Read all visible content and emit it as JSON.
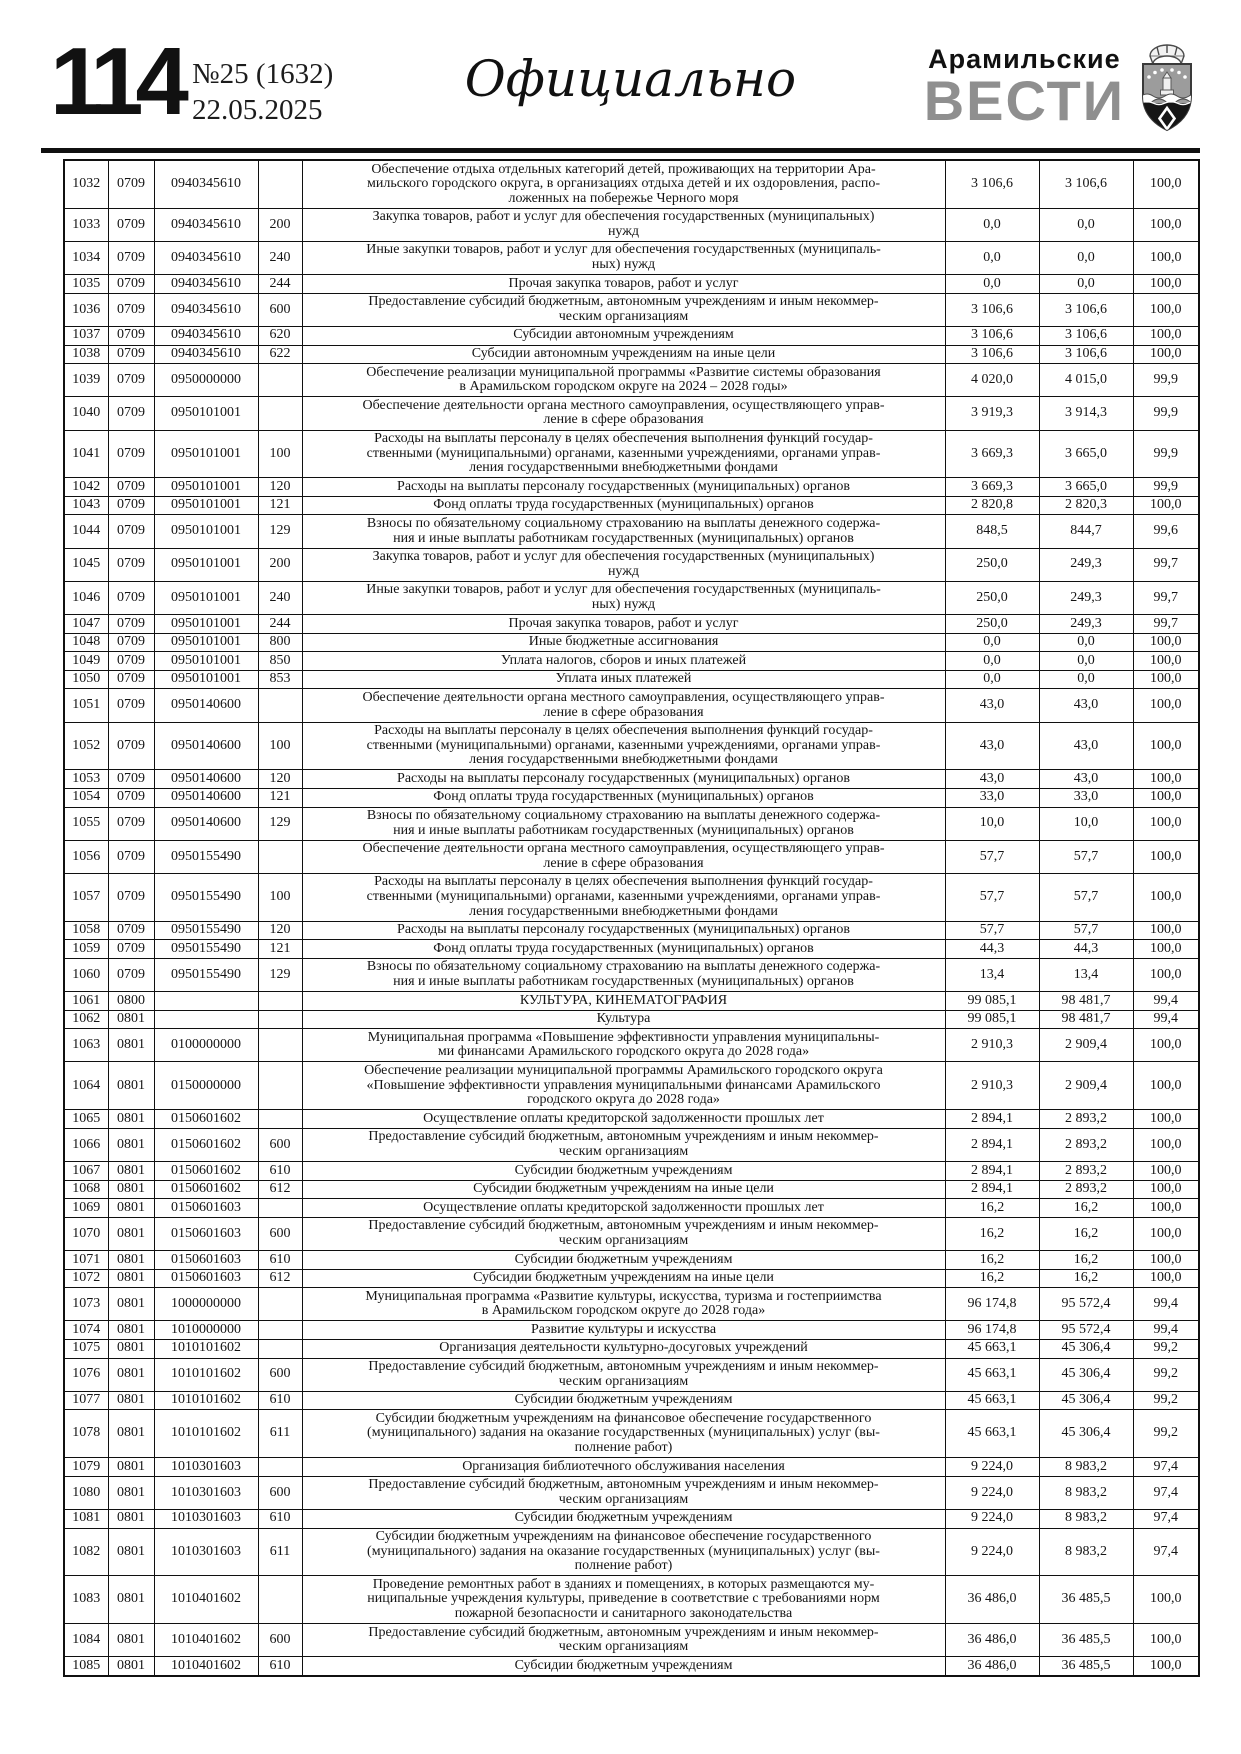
{
  "page_header": {
    "page_number": "114",
    "issue_number": "№25 (1632)",
    "issue_date": "22.05.2025",
    "section_title": "Официально",
    "brand_line1": "Арамильские",
    "brand_line2": "ВЕСТИ",
    "emblem": "aramil-coat-of-arms"
  },
  "colors": {
    "ink": "#1c1c1c",
    "brand_gray": "#8f8f8f",
    "rule_black": "#101010"
  },
  "table": {
    "rows": [
      {
        "num": "1032",
        "section": "0709",
        "target": "0940345610",
        "type": "",
        "name": "Обеспечение отдыха отдельных категорий детей, проживающих на территории Ара-\nмильского городского округа, в организациях отдыха детей и их оздоровления, распо-\nложенных на побережье Черного моря",
        "plan": "3 106,6",
        "fact": "3 106,6",
        "pct": "100,0"
      },
      {
        "num": "1033",
        "section": "0709",
        "target": "0940345610",
        "type": "200",
        "name": "Закупка товаров, работ и услуг для обеспечения государственных (муниципальных)\nнужд",
        "plan": "0,0",
        "fact": "0,0",
        "pct": "100,0"
      },
      {
        "num": "1034",
        "section": "0709",
        "target": "0940345610",
        "type": "240",
        "name": "Иные закупки товаров, работ и услуг для обеспечения государственных (муниципаль-\nных) нужд",
        "plan": "0,0",
        "fact": "0,0",
        "pct": "100,0"
      },
      {
        "num": "1035",
        "section": "0709",
        "target": "0940345610",
        "type": "244",
        "name": "Прочая закупка товаров, работ и услуг",
        "plan": "0,0",
        "fact": "0,0",
        "pct": "100,0"
      },
      {
        "num": "1036",
        "section": "0709",
        "target": "0940345610",
        "type": "600",
        "name": "Предоставление субсидий бюджетным, автономным учреждениям и иным некоммер-\nческим организациям",
        "plan": "3 106,6",
        "fact": "3 106,6",
        "pct": "100,0"
      },
      {
        "num": "1037",
        "section": "0709",
        "target": "0940345610",
        "type": "620",
        "name": "Субсидии автономным учреждениям",
        "plan": "3 106,6",
        "fact": "3 106,6",
        "pct": "100,0"
      },
      {
        "num": "1038",
        "section": "0709",
        "target": "0940345610",
        "type": "622",
        "name": "Субсидии автономным учреждениям на иные цели",
        "plan": "3 106,6",
        "fact": "3 106,6",
        "pct": "100,0"
      },
      {
        "num": "1039",
        "section": "0709",
        "target": "0950000000",
        "type": "",
        "name": "Обеспечение реализации муниципальной программы «Развитие системы образования\nв Арамильском городском округе на 2024 – 2028 годы»",
        "plan": "4 020,0",
        "fact": "4 015,0",
        "pct": "99,9"
      },
      {
        "num": "1040",
        "section": "0709",
        "target": "0950101001",
        "type": "",
        "name": "Обеспечение деятельности органа местного самоуправления, осуществляющего управ-\nление в сфере образования",
        "plan": "3 919,3",
        "fact": "3 914,3",
        "pct": "99,9"
      },
      {
        "num": "1041",
        "section": "0709",
        "target": "0950101001",
        "type": "100",
        "name": "Расходы на выплаты персоналу в целях обеспечения выполнения функций государ-\nственными (муниципальными) органами, казенными учреждениями, органами управ-\nления государственными внебюджетными фондами",
        "plan": "3 669,3",
        "fact": "3 665,0",
        "pct": "99,9"
      },
      {
        "num": "1042",
        "section": "0709",
        "target": "0950101001",
        "type": "120",
        "name": "Расходы на выплаты персоналу государственных (муниципальных) органов",
        "plan": "3 669,3",
        "fact": "3 665,0",
        "pct": "99,9"
      },
      {
        "num": "1043",
        "section": "0709",
        "target": "0950101001",
        "type": "121",
        "name": "Фонд оплаты труда государственных (муниципальных) органов",
        "plan": "2 820,8",
        "fact": "2 820,3",
        "pct": "100,0"
      },
      {
        "num": "1044",
        "section": "0709",
        "target": "0950101001",
        "type": "129",
        "name": "Взносы по обязательному социальному страхованию на выплаты денежного содержа-\nния и иные выплаты работникам государственных (муниципальных) органов",
        "plan": "848,5",
        "fact": "844,7",
        "pct": "99,6"
      },
      {
        "num": "1045",
        "section": "0709",
        "target": "0950101001",
        "type": "200",
        "name": "Закупка товаров, работ и услуг для обеспечения государственных (муниципальных)\nнужд",
        "plan": "250,0",
        "fact": "249,3",
        "pct": "99,7"
      },
      {
        "num": "1046",
        "section": "0709",
        "target": "0950101001",
        "type": "240",
        "name": "Иные закупки товаров, работ и услуг для обеспечения государственных (муниципаль-\nных) нужд",
        "plan": "250,0",
        "fact": "249,3",
        "pct": "99,7"
      },
      {
        "num": "1047",
        "section": "0709",
        "target": "0950101001",
        "type": "244",
        "name": "Прочая закупка товаров, работ и услуг",
        "plan": "250,0",
        "fact": "249,3",
        "pct": "99,7"
      },
      {
        "num": "1048",
        "section": "0709",
        "target": "0950101001",
        "type": "800",
        "name": "Иные бюджетные ассигнования",
        "plan": "0,0",
        "fact": "0,0",
        "pct": "100,0"
      },
      {
        "num": "1049",
        "section": "0709",
        "target": "0950101001",
        "type": "850",
        "name": "Уплата налогов, сборов и иных платежей",
        "plan": "0,0",
        "fact": "0,0",
        "pct": "100,0"
      },
      {
        "num": "1050",
        "section": "0709",
        "target": "0950101001",
        "type": "853",
        "name": "Уплата иных платежей",
        "plan": "0,0",
        "fact": "0,0",
        "pct": "100,0"
      },
      {
        "num": "1051",
        "section": "0709",
        "target": "0950140600",
        "type": "",
        "name": "Обеспечение деятельности органа местного самоуправления, осуществляющего управ-\nление в сфере образования",
        "plan": "43,0",
        "fact": "43,0",
        "pct": "100,0"
      },
      {
        "num": "1052",
        "section": "0709",
        "target": "0950140600",
        "type": "100",
        "name": "Расходы на выплаты персоналу в целях обеспечения выполнения функций государ-\nственными (муниципальными) органами, казенными учреждениями, органами управ-\nления государственными внебюджетными фондами",
        "plan": "43,0",
        "fact": "43,0",
        "pct": "100,0"
      },
      {
        "num": "1053",
        "section": "0709",
        "target": "0950140600",
        "type": "120",
        "name": "Расходы на выплаты персоналу государственных (муниципальных) органов",
        "plan": "43,0",
        "fact": "43,0",
        "pct": "100,0"
      },
      {
        "num": "1054",
        "section": "0709",
        "target": "0950140600",
        "type": "121",
        "name": "Фонд оплаты труда государственных (муниципальных) органов",
        "plan": "33,0",
        "fact": "33,0",
        "pct": "100,0"
      },
      {
        "num": "1055",
        "section": "0709",
        "target": "0950140600",
        "type": "129",
        "name": "Взносы по обязательному социальному страхованию на выплаты денежного содержа-\nния и иные выплаты работникам государственных (муниципальных) органов",
        "plan": "10,0",
        "fact": "10,0",
        "pct": "100,0"
      },
      {
        "num": "1056",
        "section": "0709",
        "target": "0950155490",
        "type": "",
        "name": "Обеспечение деятельности органа местного самоуправления, осуществляющего управ-\nление в сфере образования",
        "plan": "57,7",
        "fact": "57,7",
        "pct": "100,0"
      },
      {
        "num": "1057",
        "section": "0709",
        "target": "0950155490",
        "type": "100",
        "name": "Расходы на выплаты персоналу в целях обеспечения выполнения функций государ-\nственными (муниципальными) органами, казенными учреждениями, органами управ-\nления государственными внебюджетными фондами",
        "plan": "57,7",
        "fact": "57,7",
        "pct": "100,0"
      },
      {
        "num": "1058",
        "section": "0709",
        "target": "0950155490",
        "type": "120",
        "name": "Расходы на выплаты персоналу государственных (муниципальных) органов",
        "plan": "57,7",
        "fact": "57,7",
        "pct": "100,0"
      },
      {
        "num": "1059",
        "section": "0709",
        "target": "0950155490",
        "type": "121",
        "name": "Фонд оплаты труда государственных (муниципальных) органов",
        "plan": "44,3",
        "fact": "44,3",
        "pct": "100,0"
      },
      {
        "num": "1060",
        "section": "0709",
        "target": "0950155490",
        "type": "129",
        "name": "Взносы по обязательному социальному страхованию на выплаты денежного содержа-\nния и иные выплаты работникам государственных (муниципальных) органов",
        "plan": "13,4",
        "fact": "13,4",
        "pct": "100,0"
      },
      {
        "num": "1061",
        "section": "0800",
        "target": "",
        "type": "",
        "name": "КУЛЬТУРА, КИНЕМАТОГРАФИЯ",
        "plan": "99 085,1",
        "fact": "98 481,7",
        "pct": "99,4"
      },
      {
        "num": "1062",
        "section": "0801",
        "target": "",
        "type": "",
        "name": "Культура",
        "plan": "99 085,1",
        "fact": "98 481,7",
        "pct": "99,4"
      },
      {
        "num": "1063",
        "section": "0801",
        "target": "0100000000",
        "type": "",
        "name": "Муниципальная программа «Повышение эффективности управления муниципальны-\nми финансами Арамильского городского округа до 2028 года»",
        "plan": "2 910,3",
        "fact": "2 909,4",
        "pct": "100,0"
      },
      {
        "num": "1064",
        "section": "0801",
        "target": "0150000000",
        "type": "",
        "name": "Обеспечение реализации муниципальной программы Арамильского городского округа\n«Повышение эффективности управления муниципальными финансами Арамильского\nгородского округа до 2028 года»",
        "plan": "2 910,3",
        "fact": "2 909,4",
        "pct": "100,0"
      },
      {
        "num": "1065",
        "section": "0801",
        "target": "0150601602",
        "type": "",
        "name": "Осуществление оплаты кредиторской задолженности прошлых лет",
        "plan": "2 894,1",
        "fact": "2 893,2",
        "pct": "100,0"
      },
      {
        "num": "1066",
        "section": "0801",
        "target": "0150601602",
        "type": "600",
        "name": "Предоставление субсидий бюджетным, автономным учреждениям и иным некоммер-\nческим организациям",
        "plan": "2 894,1",
        "fact": "2 893,2",
        "pct": "100,0"
      },
      {
        "num": "1067",
        "section": "0801",
        "target": "0150601602",
        "type": "610",
        "name": "Субсидии бюджетным учреждениям",
        "plan": "2 894,1",
        "fact": "2 893,2",
        "pct": "100,0"
      },
      {
        "num": "1068",
        "section": "0801",
        "target": "0150601602",
        "type": "612",
        "name": "Субсидии бюджетным учреждениям на иные цели",
        "plan": "2 894,1",
        "fact": "2 893,2",
        "pct": "100,0"
      },
      {
        "num": "1069",
        "section": "0801",
        "target": "0150601603",
        "type": "",
        "name": "Осуществление оплаты кредиторской задолженности прошлых лет",
        "plan": "16,2",
        "fact": "16,2",
        "pct": "100,0"
      },
      {
        "num": "1070",
        "section": "0801",
        "target": "0150601603",
        "type": "600",
        "name": "Предоставление субсидий бюджетным, автономным учреждениям и иным некоммер-\nческим организациям",
        "plan": "16,2",
        "fact": "16,2",
        "pct": "100,0"
      },
      {
        "num": "1071",
        "section": "0801",
        "target": "0150601603",
        "type": "610",
        "name": "Субсидии бюджетным учреждениям",
        "plan": "16,2",
        "fact": "16,2",
        "pct": "100,0"
      },
      {
        "num": "1072",
        "section": "0801",
        "target": "0150601603",
        "type": "612",
        "name": "Субсидии бюджетным учреждениям на иные цели",
        "plan": "16,2",
        "fact": "16,2",
        "pct": "100,0"
      },
      {
        "num": "1073",
        "section": "0801",
        "target": "1000000000",
        "type": "",
        "name": "Муниципальная программа «Развитие культуры, искусства, туризма и гостеприимства\nв Арамильском городском округе до 2028 года»",
        "plan": "96 174,8",
        "fact": "95 572,4",
        "pct": "99,4"
      },
      {
        "num": "1074",
        "section": "0801",
        "target": "1010000000",
        "type": "",
        "name": "Развитие культуры и искусства",
        "plan": "96 174,8",
        "fact": "95 572,4",
        "pct": "99,4"
      },
      {
        "num": "1075",
        "section": "0801",
        "target": "1010101602",
        "type": "",
        "name": "Организация деятельности культурно-досуговых учреждений",
        "plan": "45 663,1",
        "fact": "45 306,4",
        "pct": "99,2"
      },
      {
        "num": "1076",
        "section": "0801",
        "target": "1010101602",
        "type": "600",
        "name": "Предоставление субсидий бюджетным, автономным учреждениям и иным некоммер-\nческим организациям",
        "plan": "45 663,1",
        "fact": "45 306,4",
        "pct": "99,2"
      },
      {
        "num": "1077",
        "section": "0801",
        "target": "1010101602",
        "type": "610",
        "name": "Субсидии бюджетным учреждениям",
        "plan": "45 663,1",
        "fact": "45 306,4",
        "pct": "99,2"
      },
      {
        "num": "1078",
        "section": "0801",
        "target": "1010101602",
        "type": "611",
        "name": "Субсидии бюджетным учреждениям на финансовое обеспечение государственного\n(муниципального) задания на оказание государственных (муниципальных) услуг (вы-\nполнение работ)",
        "plan": "45 663,1",
        "fact": "45 306,4",
        "pct": "99,2"
      },
      {
        "num": "1079",
        "section": "0801",
        "target": "1010301603",
        "type": "",
        "name": "Организация библиотечного обслуживания населения",
        "plan": "9 224,0",
        "fact": "8 983,2",
        "pct": "97,4"
      },
      {
        "num": "1080",
        "section": "0801",
        "target": "1010301603",
        "type": "600",
        "name": "Предоставление субсидий бюджетным, автономным учреждениям и иным некоммер-\nческим организациям",
        "plan": "9 224,0",
        "fact": "8 983,2",
        "pct": "97,4"
      },
      {
        "num": "1081",
        "section": "0801",
        "target": "1010301603",
        "type": "610",
        "name": "Субсидии бюджетным учреждениям",
        "plan": "9 224,0",
        "fact": "8 983,2",
        "pct": "97,4"
      },
      {
        "num": "1082",
        "section": "0801",
        "target": "1010301603",
        "type": "611",
        "name": "Субсидии бюджетным учреждениям на финансовое обеспечение государственного\n(муниципального) задания на оказание государственных (муниципальных) услуг (вы-\nполнение работ)",
        "plan": "9 224,0",
        "fact": "8 983,2",
        "pct": "97,4"
      },
      {
        "num": "1083",
        "section": "0801",
        "target": "1010401602",
        "type": "",
        "name": "Проведение ремонтных работ в зданиях и помещениях, в которых размещаются му-\nниципальные учреждения культуры, приведение в соответствие с требованиями норм\nпожарной безопасности и санитарного законодательства",
        "plan": "36 486,0",
        "fact": "36 485,5",
        "pct": "100,0"
      },
      {
        "num": "1084",
        "section": "0801",
        "target": "1010401602",
        "type": "600",
        "name": "Предоставление субсидий бюджетным, автономным учреждениям и иным некоммер-\nческим организациям",
        "plan": "36 486,0",
        "fact": "36 485,5",
        "pct": "100,0"
      },
      {
        "num": "1085",
        "section": "0801",
        "target": "1010401602",
        "type": "610",
        "name": "Субсидии бюджетным учреждениям",
        "plan": "36 486,0",
        "fact": "36 485,5",
        "pct": "100,0"
      }
    ]
  }
}
